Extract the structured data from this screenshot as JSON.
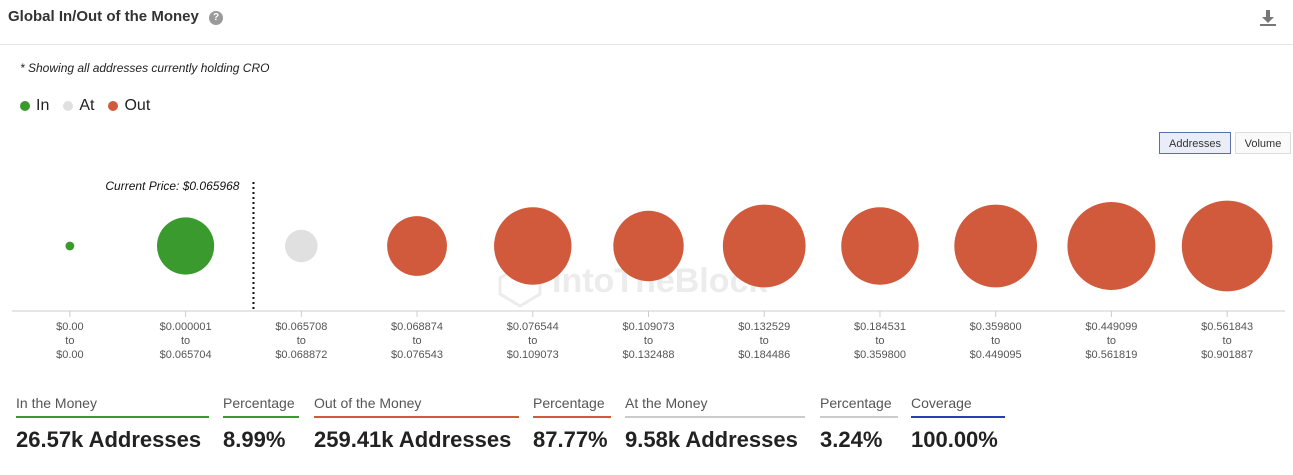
{
  "header": {
    "title": "Global In/Out of the Money",
    "help_icon": "question-mark-icon",
    "download_icon": "download-icon"
  },
  "note": "* Showing all addresses currently holding CRO",
  "legend": [
    {
      "label": "In",
      "color": "#3a9a2e"
    },
    {
      "label": "At",
      "color": "#e0e0e0"
    },
    {
      "label": "Out",
      "color": "#d05a3b"
    }
  ],
  "toggle": {
    "addresses_label": "Addresses",
    "volume_label": "Volume",
    "selected": "Addresses"
  },
  "watermark": "IntoTheBlock",
  "chart_data": {
    "type": "bubble",
    "current_price_label": "Current Price: $0.065968",
    "colors": {
      "In": "#3a9a2e",
      "At": "#e0e0e0",
      "Out": "#d05a3b"
    },
    "buckets": [
      {
        "from": "$0.00",
        "to": "$0.00",
        "status": "In",
        "size": 0.1
      },
      {
        "from": "$0.000001",
        "to": "$0.065704",
        "status": "In",
        "size": 0.65
      },
      {
        "from": "$0.065708",
        "to": "$0.068872",
        "status": "At",
        "size": 0.37
      },
      {
        "from": "$0.068874",
        "to": "$0.076543",
        "status": "Out",
        "size": 0.68
      },
      {
        "from": "$0.076544",
        "to": "$0.109073",
        "status": "Out",
        "size": 0.88
      },
      {
        "from": "$0.109073",
        "to": "$0.132488",
        "status": "Out",
        "size": 0.8
      },
      {
        "from": "$0.132529",
        "to": "$0.184486",
        "status": "Out",
        "size": 0.94
      },
      {
        "from": "$0.184531",
        "to": "$0.359800",
        "status": "Out",
        "size": 0.88
      },
      {
        "from": "$0.359800",
        "to": "$0.449095",
        "status": "Out",
        "size": 0.94
      },
      {
        "from": "$0.449099",
        "to": "$0.561819",
        "status": "Out",
        "size": 1.0
      },
      {
        "from": "$0.561843",
        "to": "$0.901887",
        "status": "Out",
        "size": 1.03
      }
    ]
  },
  "summary": [
    {
      "label": "In the Money",
      "value": "26.57k Addresses",
      "color": "#3a9a2e"
    },
    {
      "label": "Percentage",
      "value": "8.99%",
      "color": "#3a9a2e"
    },
    {
      "label": "Out of the Money",
      "value": "259.41k Addresses",
      "color": "#d05a3b"
    },
    {
      "label": "Percentage",
      "value": "87.77%",
      "color": "#d05a3b"
    },
    {
      "label": "At the Money",
      "value": "9.58k Addresses",
      "color": "#cccccc"
    },
    {
      "label": "Percentage",
      "value": "3.24%",
      "color": "#cccccc"
    },
    {
      "label": "Coverage",
      "value": "100.00%",
      "color": "#2b3ab5"
    }
  ]
}
